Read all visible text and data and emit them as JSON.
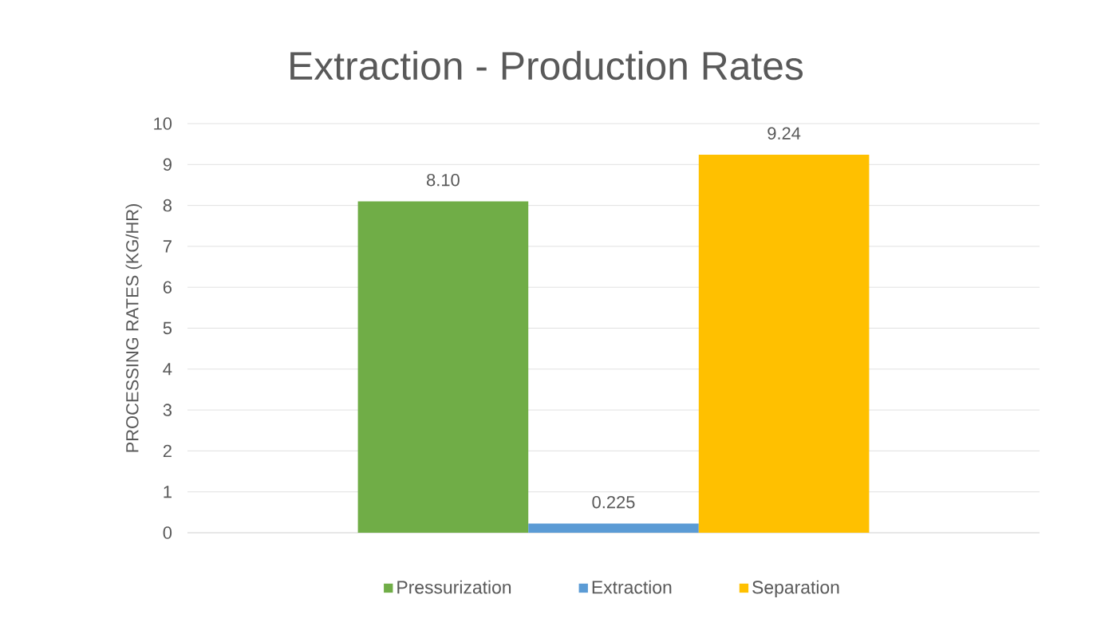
{
  "chart_data": {
    "type": "bar",
    "title": "Extraction - Production Rates",
    "ylabel": "PROCESSING RATES (KG/HR)",
    "categories": [
      null
    ],
    "series": [
      {
        "name": "Pressurization",
        "color": "#70ad47",
        "values": [
          8.1
        ],
        "value_labels": [
          "8.10"
        ]
      },
      {
        "name": "Extraction",
        "color": "#5b9bd5",
        "values": [
          0.225
        ],
        "value_labels": [
          "0.225"
        ]
      },
      {
        "name": "Separation",
        "color": "#ffc000",
        "values": [
          9.24
        ],
        "value_labels": [
          "9.24"
        ]
      }
    ],
    "ylim": [
      0,
      10
    ],
    "yticks": [
      0,
      1,
      2,
      3,
      4,
      5,
      6,
      7,
      8,
      9,
      10
    ],
    "grid": "y",
    "legend": "bottom"
  }
}
